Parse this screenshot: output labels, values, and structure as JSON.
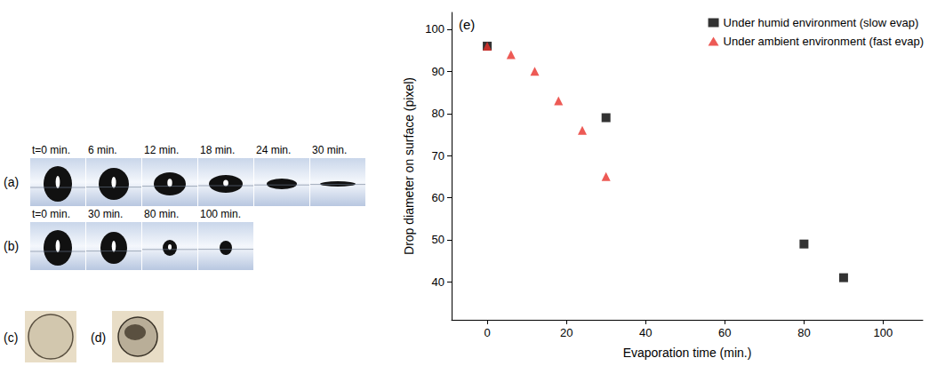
{
  "chart_data": {
    "type": "scatter",
    "panel_label": "(e)",
    "x_label": "Evaporation time (min.)",
    "y_label": "Drop diameter on surface (pixel)",
    "xlim": [
      -9,
      110
    ],
    "xticks": [
      0,
      20,
      40,
      60,
      80,
      100
    ],
    "ylim": [
      31,
      104
    ],
    "yticks": [
      40,
      50,
      60,
      70,
      80,
      90,
      100
    ],
    "legend": "upper right",
    "grid": false,
    "series": [
      {
        "name": "Under humid environment (slow evap)",
        "color": "#000000",
        "marker": "square",
        "x": [
          0,
          30,
          80,
          90
        ],
        "values": [
          96,
          79,
          49,
          41
        ]
      },
      {
        "name": "Under ambient environment (fast evap)",
        "color": "#e8312a",
        "marker": "triangle",
        "x": [
          0,
          6,
          12,
          18,
          24,
          30
        ],
        "values": [
          96,
          94,
          90,
          83,
          76,
          65
        ]
      }
    ]
  },
  "figure_panels": [
    {
      "label": "(a)",
      "frames": [
        "t=0 min.",
        "6 min.",
        "12 min.",
        "18 min.",
        "24 min.",
        "30 min."
      ]
    },
    {
      "label": "(b)",
      "frames": [
        "t=0 min.",
        "30 min.",
        "80 min.",
        "100 min."
      ]
    },
    {
      "label": "(c)",
      "frames": []
    },
    {
      "label": "(d)",
      "frames": []
    }
  ]
}
